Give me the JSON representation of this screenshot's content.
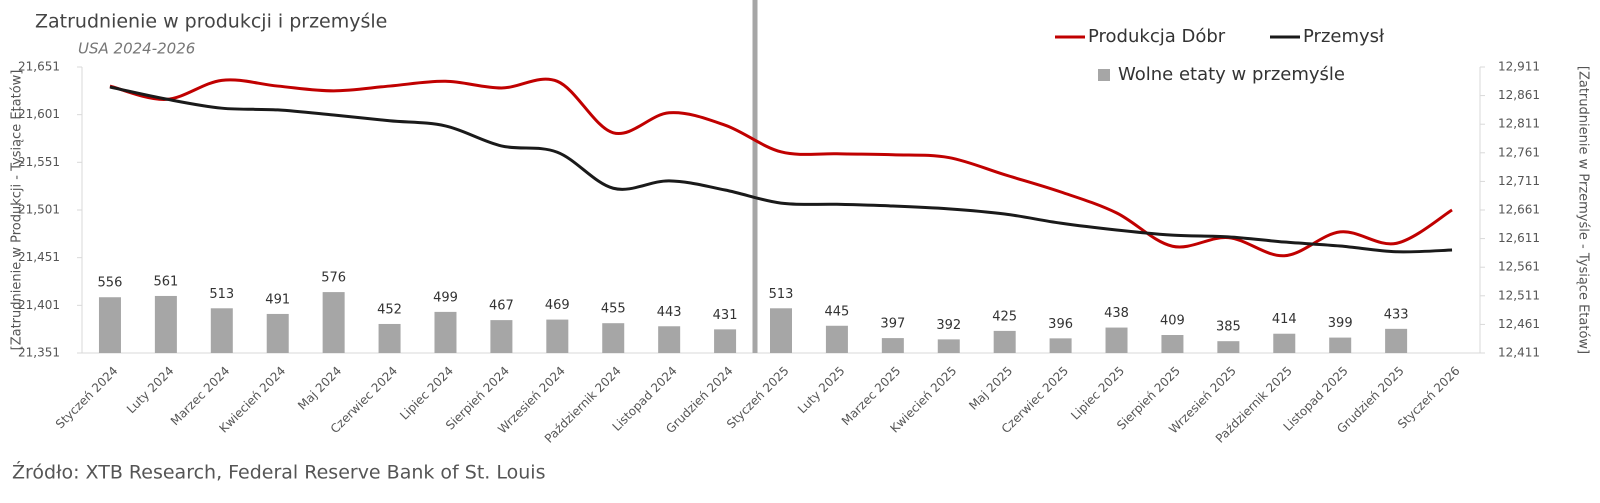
{
  "chart_data": {
    "type": "line",
    "title": "Zatrudnienie w produkcji i przemyśle",
    "subtitle": "USA 2024-2026",
    "source": "Źródło: XTB Research, Federal Reserve Bank of St. Louis",
    "ylabel": "[Zatrudnienie w Produkcji - Tysiące Etatów]",
    "y2label": "[Zatrudnienie w Przemyśle - Tysiące Etatów]",
    "categories": [
      "Styczeń 2024",
      "Luty 2024",
      "Marzec 2024",
      "Kwiecień 2024",
      "Maj 2024",
      "Czerwiec 2024",
      "Lipiec 2024",
      "Sierpień 2024",
      "Wrzesień 2024",
      "Październik 2024",
      "Listopad 2024",
      "Grudzień 2024",
      "Styczeń 2025",
      "Luty 2025",
      "Marzec 2025",
      "Kwiecień 2025",
      "Maj 2025",
      "Czerwiec 2025",
      "Lipiec 2025",
      "Sierpień 2025",
      "Wrzesień 2025",
      "Październik 2025",
      "Listopad 2025",
      "Grudzień 2025",
      "Styczeń 2026"
    ],
    "series": [
      {
        "name": "Produkcja Dóbr",
        "color": "#c00000",
        "axis": "y",
        "values": [
          21631,
          21617,
          21637,
          21631,
          21626,
          21631,
          21636,
          21629,
          21636,
          21582,
          21603,
          21590,
          21562,
          21560,
          21559,
          21556,
          21538,
          21520,
          21498,
          21463,
          21472,
          21453,
          21478,
          21466,
          21501
        ]
      },
      {
        "name": "Przemysł",
        "color": "#1a1a1a",
        "axis": "y2",
        "values": [
          12876,
          12855,
          12839,
          12836,
          12827,
          12817,
          12808,
          12773,
          12762,
          12699,
          12712,
          12696,
          12673,
          12671,
          12668,
          12663,
          12654,
          12638,
          12626,
          12617,
          12614,
          12605,
          12598,
          12588,
          12591
        ]
      },
      {
        "name": "Wolne etaty w przemyśle",
        "color": "#a6a6a6",
        "axis": "y3",
        "type": "bar",
        "values": [
          556,
          561,
          513,
          491,
          576,
          452,
          499,
          467,
          469,
          455,
          443,
          431,
          513,
          445,
          397,
          392,
          425,
          396,
          438,
          409,
          385,
          414,
          399,
          433,
          null
        ]
      }
    ],
    "ylim": [
      21351,
      21651
    ],
    "yticks": [
      {
        "value": 21351,
        "label": "21,351"
      },
      {
        "value": 21401,
        "label": "21,401"
      },
      {
        "value": 21451,
        "label": "21,451"
      },
      {
        "value": 21501,
        "label": "21,501"
      },
      {
        "value": 21551,
        "label": "21,551"
      },
      {
        "value": 21601,
        "label": "21,601"
      },
      {
        "value": 21651,
        "label": "21,651"
      }
    ],
    "y2lim": [
      12411,
      12911
    ],
    "y2ticks": [
      {
        "value": 12411,
        "label": "12,411"
      },
      {
        "value": 12461,
        "label": "12,461"
      },
      {
        "value": 12511,
        "label": "12,511"
      },
      {
        "value": 12561,
        "label": "12,561"
      },
      {
        "value": 12611,
        "label": "12,611"
      },
      {
        "value": 12661,
        "label": "12,661"
      },
      {
        "value": 12711,
        "label": "12,711"
      },
      {
        "value": 12761,
        "label": "12,761"
      },
      {
        "value": 12811,
        "label": "12,811"
      },
      {
        "value": 12861,
        "label": "12,861"
      },
      {
        "value": 12911,
        "label": "12,911"
      }
    ],
    "y3lim": [
      339,
      1452
    ],
    "grid": false,
    "legend": "top-right"
  }
}
